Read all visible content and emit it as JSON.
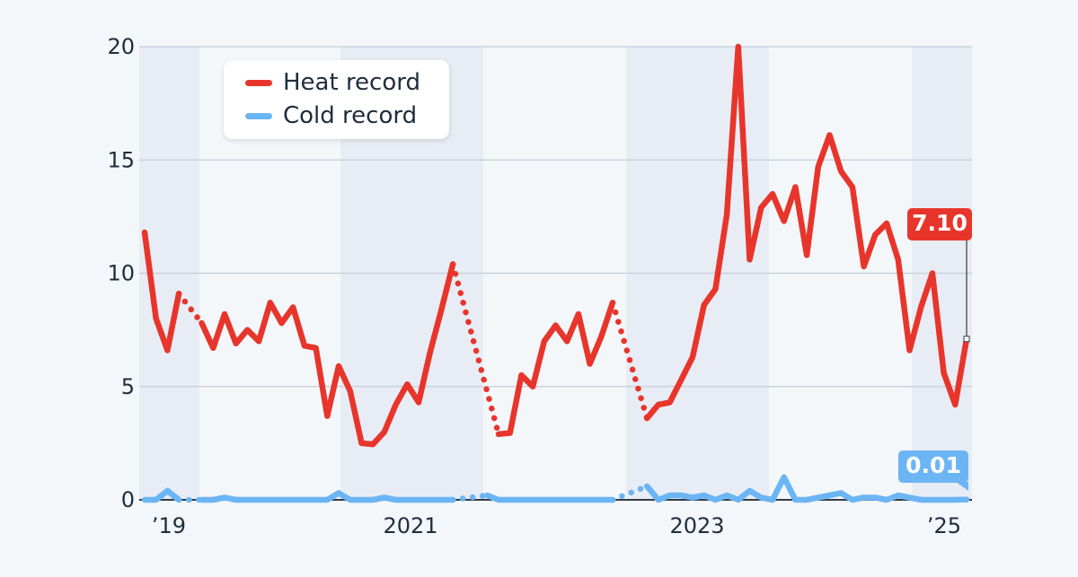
{
  "chart_data": {
    "type": "line",
    "colors": {
      "heat": "#e8352b",
      "cold": "#6cb5f5"
    },
    "legend": {
      "placement": "top-left"
    },
    "x_tick_labels": [
      "’19",
      "2021",
      "2023",
      "’25"
    ],
    "y_ticks": [
      0,
      5,
      10,
      15,
      20
    ],
    "ylim": [
      0,
      20
    ],
    "grid": true,
    "series": [
      {
        "name": "Heat record",
        "key": "heat",
        "values": [
          11.8,
          8.0,
          6.6,
          9.1,
          null,
          7.8,
          6.7,
          8.2,
          6.9,
          7.5,
          7.0,
          8.7,
          7.8,
          8.5,
          6.8,
          6.7,
          3.7,
          5.9,
          4.8,
          2.5,
          2.45,
          3.0,
          4.2,
          5.1,
          4.3,
          6.5,
          8.4,
          10.4,
          null,
          null,
          null,
          2.9,
          2.95,
          5.5,
          5.0,
          7.0,
          7.7,
          7.0,
          8.2,
          6.0,
          7.2,
          8.7,
          null,
          null,
          3.6,
          4.2,
          4.3,
          5.3,
          6.3,
          8.6,
          9.3,
          12.6,
          20.0,
          10.6,
          12.9,
          13.5,
          12.3,
          13.8,
          10.8,
          14.7,
          16.1,
          14.5,
          13.8,
          10.3,
          11.7,
          12.2,
          10.6,
          6.6,
          8.5,
          10.0,
          5.6,
          4.2,
          7.1
        ]
      },
      {
        "name": "Cold record",
        "key": "cold",
        "values": [
          0.0,
          0.0,
          0.4,
          0.0,
          null,
          0.0,
          0.0,
          0.1,
          0.0,
          0.0,
          0.0,
          0.0,
          0.0,
          0.0,
          0.0,
          0.0,
          0.0,
          0.3,
          0.0,
          0.0,
          0.0,
          0.1,
          0.0,
          0.0,
          0.0,
          0.0,
          0.0,
          0.0,
          null,
          null,
          0.2,
          0.0,
          0.0,
          0.0,
          0.0,
          0.0,
          0.0,
          0.0,
          0.0,
          0.0,
          0.0,
          0.0,
          null,
          null,
          0.6,
          0.0,
          0.2,
          0.2,
          0.1,
          0.2,
          0.0,
          0.2,
          0.0,
          0.4,
          0.1,
          0.0,
          1.0,
          0.0,
          0.0,
          0.1,
          0.2,
          0.3,
          0.0,
          0.1,
          0.1,
          0.0,
          0.2,
          0.1,
          0.0,
          0.0,
          0.0,
          0.0,
          0.01
        ]
      }
    ],
    "end_labels": {
      "heat": "7.10",
      "cold": "0.01"
    }
  }
}
